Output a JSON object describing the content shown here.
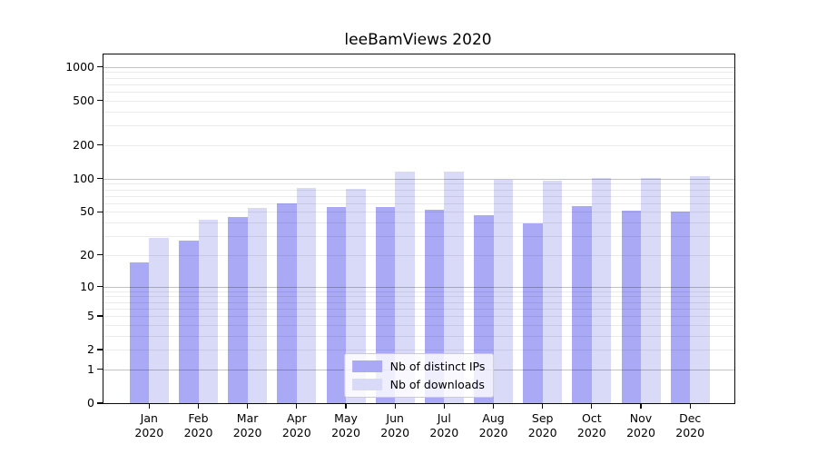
{
  "title": "leeBamViews 2020",
  "chart_data": {
    "type": "bar",
    "title": "leeBamViews 2020",
    "xlabel": "",
    "ylabel": "",
    "categories": [
      "Jan",
      "Feb",
      "Mar",
      "Apr",
      "May",
      "Jun",
      "Jul",
      "Aug",
      "Sep",
      "Oct",
      "Nov",
      "Dec"
    ],
    "category_year": "2020",
    "series": [
      {
        "name": "Nb of distinct IPs",
        "color": "#a9a9f6",
        "values": [
          17,
          27,
          45,
          60,
          55,
          55,
          52,
          47,
          39,
          56,
          51,
          50
        ]
      },
      {
        "name": "Nb of downloads",
        "color": "#d9d9f8",
        "values": [
          29,
          42,
          54,
          82,
          81,
          115,
          115,
          98,
          95,
          101,
          102,
          106
        ]
      }
    ],
    "yscale": "symlog-log1p",
    "ylim": [
      0,
      1290
    ],
    "y_ticks": [
      0,
      1,
      2,
      5,
      10,
      20,
      50,
      100,
      200,
      500,
      1000
    ],
    "grid_major": [
      1,
      10,
      100,
      1000
    ],
    "grid_minor": [
      2,
      3,
      4,
      5,
      6,
      7,
      8,
      9,
      20,
      30,
      40,
      50,
      60,
      70,
      80,
      90,
      200,
      300,
      400,
      500,
      600,
      700,
      800,
      900
    ],
    "grid": "both, drawn over bars",
    "legend_position": "lower center"
  }
}
